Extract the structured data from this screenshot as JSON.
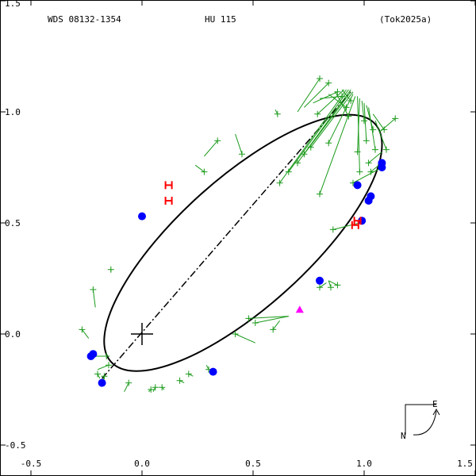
{
  "header": {
    "wds": "WDS 08132-1354",
    "discoverer": "HU  115",
    "reference": "(Tok2025a)"
  },
  "compass": {
    "east_label": "E",
    "north_label": "N"
  },
  "colors": {
    "orbit": "#000000",
    "residual": "#1a9a1a",
    "micrometer": "#1a9a1a",
    "speckle": "#0000ff",
    "interferometric": "#ff0000",
    "predicted": "#ff00ff"
  },
  "chart_data": {
    "type": "scatter",
    "title": "",
    "xlabel": "",
    "ylabel": "",
    "xlim": [
      -0.5,
      1.5
    ],
    "ylim": [
      -0.5,
      1.5
    ],
    "x_ticks": [
      {
        "value": -0.5,
        "label": "-0.5"
      },
      {
        "value": 0.0,
        "label": "0.0"
      },
      {
        "value": 0.5,
        "label": "0.5"
      },
      {
        "value": 1.0,
        "label": "1.0"
      },
      {
        "value": 1.5,
        "label": "1.5"
      }
    ],
    "y_ticks": [
      {
        "value": -0.5,
        "label": "-0.5"
      },
      {
        "value": 0.0,
        "label": "0.0"
      },
      {
        "value": 0.5,
        "label": "0.5"
      },
      {
        "value": 1.0,
        "label": "1.0"
      },
      {
        "value": 1.5,
        "label": "1.5"
      }
    ],
    "primary": {
      "x": 0.0,
      "y": 0.0
    },
    "orbit": {
      "center": [
        0.455,
        0.41
      ],
      "semi_axes": [
        0.8,
        0.29
      ],
      "rotation_deg": 42
    },
    "line_of_nodes": [
      [
        -0.18,
        -0.2
      ],
      [
        0.94,
        1.09
      ]
    ],
    "micrometer": [
      {
        "obs": [
          0.8,
          1.15
        ],
        "fit": [
          0.7,
          1.0
        ]
      },
      {
        "obs": [
          0.84,
          1.13
        ],
        "fit": [
          0.73,
          1.02
        ]
      },
      {
        "obs": [
          0.88,
          1.09
        ],
        "fit": [
          0.77,
          1.04
        ]
      },
      {
        "obs": [
          0.9,
          1.07
        ],
        "fit": [
          0.8,
          1.06
        ]
      },
      {
        "obs": [
          0.92,
          1.02
        ],
        "fit": [
          0.84,
          1.08
        ]
      },
      {
        "obs": [
          0.93,
          0.98
        ],
        "fit": [
          0.87,
          1.09
        ]
      },
      {
        "obs": [
          0.94,
          1.05
        ],
        "fit": [
          0.9,
          1.1
        ]
      },
      {
        "obs": [
          0.79,
          0.99
        ],
        "fit": [
          0.91,
          1.1
        ]
      },
      {
        "obs": [
          0.62,
          0.68
        ],
        "fit": [
          0.92,
          1.1
        ]
      },
      {
        "obs": [
          0.66,
          0.73
        ],
        "fit": [
          0.93,
          1.1
        ]
      },
      {
        "obs": [
          0.7,
          0.77
        ],
        "fit": [
          0.94,
          1.1
        ]
      },
      {
        "obs": [
          0.73,
          0.81
        ],
        "fit": [
          0.94,
          1.09
        ]
      },
      {
        "obs": [
          0.76,
          0.84
        ],
        "fit": [
          0.95,
          1.09
        ]
      },
      {
        "obs": [
          0.84,
          0.86
        ],
        "fit": [
          0.95,
          1.08
        ]
      },
      {
        "obs": [
          0.8,
          0.63
        ],
        "fit": [
          0.96,
          1.07
        ]
      },
      {
        "obs": [
          0.98,
          0.73
        ],
        "fit": [
          0.97,
          1.07
        ]
      },
      {
        "obs": [
          0.97,
          0.82
        ],
        "fit": [
          0.98,
          1.06
        ]
      },
      {
        "obs": [
          1.0,
          0.96
        ],
        "fit": [
          0.99,
          1.05
        ]
      },
      {
        "obs": [
          1.01,
          0.87
        ],
        "fit": [
          1.0,
          1.04
        ]
      },
      {
        "obs": [
          1.04,
          0.92
        ],
        "fit": [
          1.01,
          1.03
        ]
      },
      {
        "obs": [
          1.05,
          0.83
        ],
        "fit": [
          1.02,
          1.02
        ]
      },
      {
        "obs": [
          1.09,
          0.92
        ],
        "fit": [
          1.04,
          0.99
        ]
      },
      {
        "obs": [
          1.1,
          0.83
        ],
        "fit": [
          1.05,
          0.96
        ]
      },
      {
        "obs": [
          1.14,
          0.97
        ],
        "fit": [
          1.07,
          0.91
        ]
      },
      {
        "obs": [
          1.02,
          0.77
        ],
        "fit": [
          1.08,
          0.82
        ]
      },
      {
        "obs": [
          1.03,
          0.73
        ],
        "fit": [
          1.09,
          0.78
        ]
      },
      {
        "obs": [
          0.95,
          0.68
        ],
        "fit": [
          1.08,
          0.75
        ]
      },
      {
        "obs": [
          0.86,
          0.47
        ],
        "fit": [
          0.98,
          0.5
        ]
      },
      {
        "obs": [
          0.34,
          0.87
        ],
        "fit": [
          0.28,
          0.8
        ]
      },
      {
        "obs": [
          0.45,
          0.81
        ],
        "fit": [
          0.42,
          0.9
        ]
      },
      {
        "obs": [
          0.28,
          0.73
        ],
        "fit": [
          0.24,
          0.76
        ]
      },
      {
        "obs": [
          0.61,
          0.99
        ],
        "fit": [
          0.6,
          1.01
        ]
      },
      {
        "obs": [
          0.8,
          0.21
        ],
        "fit": [
          0.83,
          0.23
        ]
      },
      {
        "obs": [
          0.85,
          0.21
        ],
        "fit": [
          0.84,
          0.24
        ]
      },
      {
        "obs": [
          0.88,
          0.22
        ],
        "fit": [
          0.84,
          0.24
        ]
      },
      {
        "obs": [
          0.48,
          0.07
        ],
        "fit": [
          0.66,
          0.08
        ]
      },
      {
        "obs": [
          0.51,
          0.05
        ],
        "fit": [
          0.66,
          0.08
        ]
      },
      {
        "obs": [
          0.42,
          0.0
        ],
        "fit": [
          0.51,
          -0.04
        ]
      },
      {
        "obs": [
          0.59,
          0.02
        ],
        "fit": [
          0.62,
          0.06
        ]
      },
      {
        "obs": [
          0.3,
          -0.16
        ],
        "fit": [
          0.29,
          -0.14
        ]
      },
      {
        "obs": [
          0.21,
          -0.18
        ],
        "fit": [
          0.23,
          -0.19
        ]
      },
      {
        "obs": [
          0.17,
          -0.21
        ],
        "fit": [
          0.19,
          -0.22
        ]
      },
      {
        "obs": [
          0.06,
          -0.24
        ],
        "fit": [
          0.05,
          -0.26
        ]
      },
      {
        "obs": [
          0.04,
          -0.25
        ],
        "fit": [
          0.03,
          -0.26
        ]
      },
      {
        "obs": [
          0.09,
          -0.24
        ],
        "fit": [
          0.1,
          -0.25
        ]
      },
      {
        "obs": [
          -0.06,
          -0.22
        ],
        "fit": [
          -0.08,
          -0.26
        ]
      },
      {
        "obs": [
          -0.17,
          -0.19
        ],
        "fit": [
          -0.18,
          -0.22
        ]
      },
      {
        "obs": [
          -0.22,
          0.2
        ],
        "fit": [
          -0.21,
          0.12
        ]
      },
      {
        "obs": [
          -0.27,
          0.02
        ],
        "fit": [
          -0.24,
          -0.02
        ]
      },
      {
        "obs": [
          -0.16,
          -0.1
        ],
        "fit": [
          -0.22,
          -0.1
        ]
      },
      {
        "obs": [
          -0.15,
          -0.14
        ],
        "fit": [
          -0.2,
          -0.16
        ]
      },
      {
        "obs": [
          -0.2,
          -0.18
        ],
        "fit": [
          -0.19,
          -0.2
        ]
      },
      {
        "obs": [
          -0.14,
          0.29
        ],
        "fit": [
          -0.14,
          0.28
        ]
      }
    ],
    "speckle": [
      {
        "obs": [
          0.0,
          0.53
        ]
      },
      {
        "obs": [
          0.97,
          0.67
        ]
      },
      {
        "obs": [
          0.99,
          0.51
        ]
      },
      {
        "obs": [
          1.02,
          0.6
        ]
      },
      {
        "obs": [
          1.03,
          0.62
        ]
      },
      {
        "obs": [
          1.08,
          0.77
        ]
      },
      {
        "obs": [
          1.08,
          0.75
        ]
      },
      {
        "obs": [
          0.8,
          0.24
        ]
      },
      {
        "obs": [
          0.32,
          -0.17
        ]
      },
      {
        "obs": [
          -0.18,
          -0.22
        ]
      },
      {
        "obs": [
          -0.22,
          -0.09
        ]
      },
      {
        "obs": [
          -0.23,
          -0.1
        ]
      }
    ],
    "interferometric": [
      {
        "obs": [
          0.12,
          0.67
        ]
      },
      {
        "obs": [
          0.12,
          0.6
        ]
      },
      {
        "obs": [
          0.97,
          0.51
        ]
      },
      {
        "obs": [
          0.96,
          0.49
        ]
      }
    ],
    "predicted": [
      {
        "obs": [
          0.71,
          0.11
        ]
      }
    ]
  }
}
